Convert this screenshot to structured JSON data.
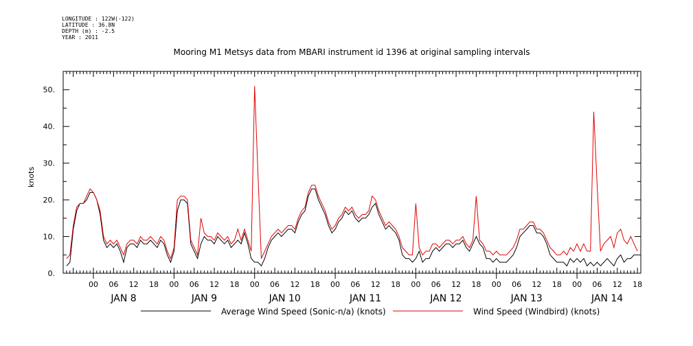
{
  "header": {
    "meta_lines": [
      "LONGITUDE : 122W(-122)",
      "LATITUDE : 36.8N",
      "DEPTH (m) : -2.5",
      "YEAR : 2011"
    ]
  },
  "chart_data": {
    "type": "line",
    "title": "Mooring M1 Metsys data from MBARI instrument id 1396 at original sampling intervals",
    "xlabel": "",
    "ylabel": "knots",
    "xlim_hours": [
      -9,
      163
    ],
    "ylim": [
      0,
      55
    ],
    "y_ticks": [
      0,
      10,
      20,
      30,
      40,
      50
    ],
    "y_tick_labels": [
      "0.",
      "10.",
      "20.",
      "30.",
      "40.",
      "50."
    ],
    "x_hour_ticks": [
      0,
      6,
      12,
      18,
      24,
      30,
      36,
      42,
      48,
      54,
      60,
      66,
      72,
      78,
      84,
      90,
      96,
      102,
      108,
      114,
      120,
      126,
      132,
      138,
      144,
      150,
      156,
      162
    ],
    "x_hour_labels": [
      "00",
      "06",
      "12",
      "18",
      "00",
      "06",
      "12",
      "18",
      "00",
      "06",
      "12",
      "18",
      "00",
      "06",
      "12",
      "18",
      "00",
      "06",
      "12",
      "18",
      "00",
      "06",
      "12",
      "18",
      "00",
      "06",
      "12",
      "18"
    ],
    "day_labels": [
      {
        "label": "JAN  8",
        "center_hour": 9
      },
      {
        "label": "JAN  9",
        "center_hour": 33
      },
      {
        "label": "JAN 10",
        "center_hour": 57
      },
      {
        "label": "JAN 11",
        "center_hour": 81
      },
      {
        "label": "JAN 12",
        "center_hour": 105
      },
      {
        "label": "JAN 13",
        "center_hour": 129
      },
      {
        "label": "JAN 14",
        "center_hour": 153
      }
    ],
    "x_unit_note": "hours after 2011-01-08 00:00",
    "grid": false,
    "legend_position": "bottom",
    "series": [
      {
        "name": "Average Wind Speed (Sonic-n/a) (knots)",
        "color": "#000000",
        "x": [
          -8,
          -7,
          -6,
          -5,
          -4,
          -3,
          -2,
          -1,
          0,
          1,
          2,
          3,
          4,
          5,
          6,
          7,
          8,
          9,
          10,
          11,
          12,
          13,
          14,
          15,
          16,
          17,
          18,
          19,
          20,
          21,
          22,
          23,
          24,
          25,
          26,
          27,
          28,
          29,
          30,
          31,
          32,
          33,
          34,
          35,
          36,
          37,
          38,
          39,
          40,
          41,
          42,
          43,
          44,
          45,
          46,
          47,
          48,
          49,
          50,
          51,
          52,
          53,
          54,
          55,
          56,
          57,
          58,
          59,
          60,
          61,
          62,
          63,
          64,
          65,
          66,
          67,
          68,
          69,
          70,
          71,
          72,
          73,
          74,
          75,
          76,
          77,
          78,
          79,
          80,
          81,
          82,
          83,
          84,
          85,
          86,
          87,
          88,
          89,
          90,
          91,
          92,
          93,
          94,
          95,
          96,
          97,
          98,
          99,
          100,
          101,
          102,
          103,
          104,
          105,
          106,
          107,
          108,
          109,
          110,
          111,
          112,
          113,
          114,
          115,
          116,
          117,
          118,
          119,
          120,
          121,
          122,
          123,
          124,
          125,
          126,
          127,
          128,
          129,
          130,
          131,
          132,
          133,
          134,
          135,
          136,
          137,
          138,
          139,
          140,
          141,
          142,
          143,
          144,
          145,
          146,
          147,
          148,
          149,
          150,
          151,
          152,
          153,
          154,
          155,
          156,
          157,
          158,
          159,
          160,
          161,
          162
        ],
        "y": [
          2,
          3,
          12,
          17,
          19,
          19,
          20,
          22,
          22,
          20,
          16,
          9,
          7,
          8,
          7,
          8,
          6,
          3,
          7,
          8,
          8,
          7,
          9,
          8,
          8,
          9,
          8,
          7,
          9,
          8,
          5,
          3,
          6,
          17,
          20,
          20,
          19,
          8,
          6,
          4,
          8,
          10,
          9,
          9,
          8,
          10,
          9,
          8,
          9,
          7,
          8,
          9,
          8,
          11,
          8,
          4,
          3,
          3,
          2,
          4,
          7,
          9,
          10,
          11,
          10,
          11,
          12,
          12,
          11,
          14,
          16,
          17,
          21,
          23,
          23,
          20,
          18,
          16,
          13,
          11,
          12,
          14,
          15,
          17,
          16,
          17,
          15,
          14,
          15,
          15,
          16,
          18,
          19,
          16,
          14,
          12,
          13,
          12,
          11,
          9,
          5,
          4,
          4,
          3,
          4,
          6,
          3,
          4,
          4,
          6,
          7,
          6,
          7,
          8,
          8,
          7,
          8,
          8,
          9,
          7,
          6,
          8,
          10,
          8,
          7,
          4,
          4,
          3,
          4,
          3,
          3,
          3,
          4,
          5,
          7,
          10,
          11,
          12,
          13,
          13,
          11,
          11,
          10,
          8,
          5,
          4,
          3,
          3,
          3,
          2,
          4,
          3,
          4,
          3,
          4,
          2,
          3,
          2,
          3,
          2,
          3,
          4,
          3,
          2,
          4,
          5,
          3,
          4,
          4,
          5,
          5
        ]
      },
      {
        "name": "Wind Speed (Windbird) (knots)",
        "color": "#e00000",
        "x": [
          -8,
          -7,
          -6,
          -5,
          -4,
          -3,
          -2,
          -1,
          0,
          1,
          2,
          3,
          4,
          5,
          6,
          7,
          8,
          9,
          10,
          11,
          12,
          13,
          14,
          15,
          16,
          17,
          18,
          19,
          20,
          21,
          22,
          23,
          24,
          25,
          26,
          27,
          28,
          29,
          30,
          31,
          32,
          33,
          34,
          35,
          36,
          37,
          38,
          39,
          40,
          41,
          42,
          43,
          44,
          45,
          46,
          47,
          48,
          49,
          50,
          51,
          52,
          53,
          54,
          55,
          56,
          57,
          58,
          59,
          60,
          61,
          62,
          63,
          64,
          65,
          66,
          67,
          68,
          69,
          70,
          71,
          72,
          73,
          74,
          75,
          76,
          77,
          78,
          79,
          80,
          81,
          82,
          83,
          84,
          85,
          86,
          87,
          88,
          89,
          90,
          91,
          92,
          93,
          94,
          95,
          96,
          97,
          98,
          99,
          100,
          101,
          102,
          103,
          104,
          105,
          106,
          107,
          108,
          109,
          110,
          111,
          112,
          113,
          114,
          115,
          116,
          117,
          118,
          119,
          120,
          121,
          122,
          123,
          124,
          125,
          126,
          127,
          128,
          129,
          130,
          131,
          132,
          133,
          134,
          135,
          136,
          137,
          138,
          139,
          140,
          141,
          142,
          143,
          144,
          145,
          146,
          147,
          148,
          149,
          150,
          151,
          152,
          153,
          154,
          155,
          156,
          157,
          158,
          159,
          160,
          161,
          162
        ],
        "y": [
          4,
          5,
          13,
          18,
          19,
          19,
          21,
          23,
          22,
          20,
          17,
          10,
          8,
          9,
          8,
          9,
          7,
          5,
          8,
          9,
          9,
          8,
          10,
          9,
          9,
          10,
          9,
          8,
          10,
          9,
          6,
          4,
          7,
          20,
          21,
          21,
          20,
          9,
          7,
          5,
          15,
          11,
          10,
          10,
          9,
          11,
          10,
          9,
          10,
          8,
          9,
          12,
          9,
          12,
          9,
          6,
          51,
          27,
          4,
          6,
          8,
          10,
          11,
          12,
          11,
          12,
          13,
          13,
          12,
          15,
          17,
          18,
          22,
          24,
          24,
          21,
          19,
          17,
          14,
          12,
          13,
          15,
          16,
          18,
          17,
          18,
          16,
          15,
          16,
          16,
          17,
          21,
          20,
          17,
          15,
          13,
          14,
          13,
          12,
          10,
          7,
          6,
          5,
          5,
          19,
          7,
          5,
          6,
          6,
          8,
          8,
          7,
          8,
          9,
          9,
          8,
          9,
          9,
          10,
          8,
          7,
          9,
          21,
          9,
          8,
          6,
          6,
          5,
          6,
          5,
          5,
          5,
          6,
          7,
          9,
          12,
          12,
          13,
          14,
          14,
          12,
          12,
          11,
          9,
          7,
          6,
          5,
          5,
          6,
          5,
          7,
          6,
          8,
          6,
          8,
          6,
          6,
          44,
          24,
          6,
          8,
          9,
          10,
          7,
          11,
          12,
          9,
          8,
          10,
          8,
          6
        ]
      }
    ]
  }
}
